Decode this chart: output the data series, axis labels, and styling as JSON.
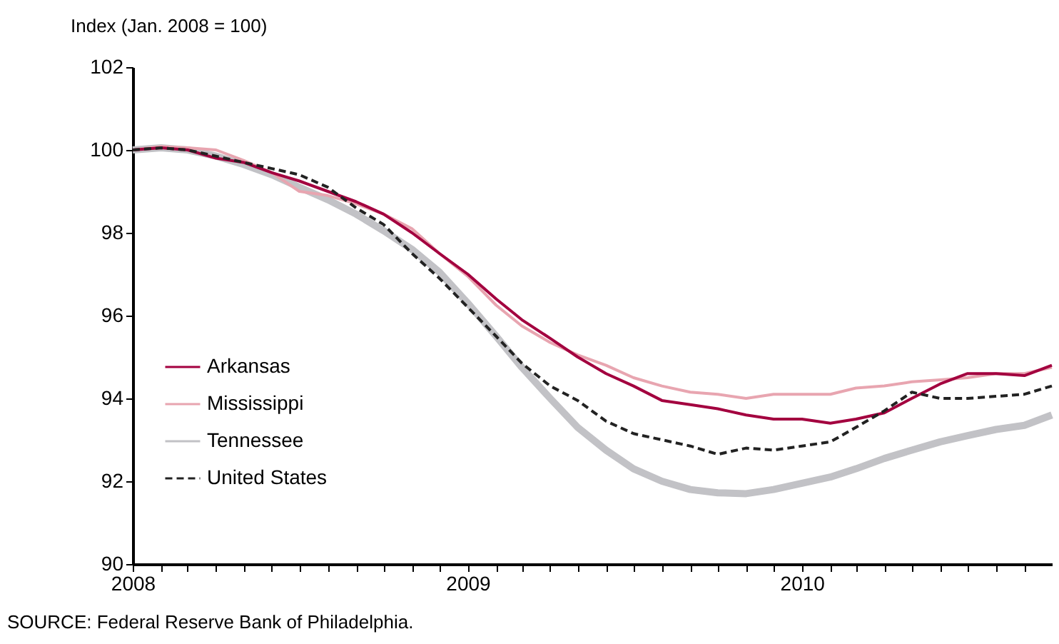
{
  "chart_data": {
    "type": "line",
    "ylabel": "Index (Jan. 2008 = 100)",
    "annotations": [
      "SOURCE: Federal Reserve Bank of Philadelphia."
    ],
    "x": [
      "2008-01",
      "2008-02",
      "2008-03",
      "2008-04",
      "2008-05",
      "2008-06",
      "2008-07",
      "2008-08",
      "2008-09",
      "2008-10",
      "2008-11",
      "2008-12",
      "2009-01",
      "2009-02",
      "2009-03",
      "2009-04",
      "2009-05",
      "2009-06",
      "2009-07",
      "2009-08",
      "2009-09",
      "2009-10",
      "2009-11",
      "2009-12",
      "2010-01",
      "2010-02",
      "2010-03",
      "2010-04",
      "2010-05",
      "2010-06",
      "2010-07",
      "2010-08",
      "2010-09",
      "2010-10"
    ],
    "series": [
      {
        "name": "Arkansas",
        "color": "#a3003f",
        "line_style": "solid",
        "values": [
          100,
          100.05,
          100.0,
          99.8,
          99.7,
          99.45,
          99.25,
          99.0,
          98.75,
          98.45,
          98.0,
          97.5,
          97.0,
          96.4,
          95.9,
          95.45,
          95.0,
          94.6,
          94.3,
          93.95,
          93.85,
          93.75,
          93.6,
          93.5,
          93.5,
          93.4,
          93.5,
          93.65,
          94.0,
          94.35,
          94.6,
          94.6,
          94.55,
          94.8
        ]
      },
      {
        "name": "Mississippi",
        "color": "#e8a5b0",
        "line_style": "solid",
        "values": [
          100,
          100.08,
          100.05,
          100.0,
          99.75,
          99.45,
          99.0,
          98.9,
          98.7,
          98.45,
          98.1,
          97.5,
          96.95,
          96.25,
          95.75,
          95.35,
          95.05,
          94.8,
          94.5,
          94.3,
          94.15,
          94.1,
          94.0,
          94.1,
          94.1,
          94.1,
          94.25,
          94.3,
          94.4,
          94.45,
          94.5,
          94.6,
          94.6,
          94.75
        ]
      },
      {
        "name": "Tennessee",
        "color": "#c2c2c6",
        "line_style": "solid",
        "values": [
          100,
          100.05,
          100.0,
          99.85,
          99.65,
          99.4,
          99.1,
          98.8,
          98.45,
          98.05,
          97.6,
          97.05,
          96.3,
          95.5,
          94.75,
          94.0,
          93.3,
          92.75,
          92.3,
          92.0,
          91.8,
          91.72,
          91.7,
          91.8,
          91.95,
          92.1,
          92.3,
          92.55,
          92.75,
          92.95,
          93.1,
          93.25,
          93.35,
          93.6
        ]
      },
      {
        "name": "United States",
        "color": "#222222",
        "line_style": "dashed",
        "values": [
          100,
          100.05,
          100.0,
          99.85,
          99.7,
          99.55,
          99.4,
          99.1,
          98.6,
          98.2,
          97.5,
          96.9,
          96.2,
          95.5,
          94.85,
          94.3,
          93.95,
          93.45,
          93.15,
          93.0,
          92.85,
          92.65,
          92.8,
          92.75,
          92.85,
          92.95,
          93.3,
          93.7,
          94.15,
          94.0,
          94.0,
          94.05,
          94.1,
          94.3
        ]
      }
    ],
    "xlim": [
      "2008-01",
      "2010-10"
    ],
    "xticks": [
      {
        "value": "2008-01",
        "label": "2008"
      },
      {
        "value": "2008-02",
        "label": null
      },
      {
        "value": "2008-03",
        "label": null
      },
      {
        "value": "2008-04",
        "label": null
      },
      {
        "value": "2008-05",
        "label": null
      },
      {
        "value": "2008-06",
        "label": null
      },
      {
        "value": "2008-07",
        "label": null
      },
      {
        "value": "2008-08",
        "label": null
      },
      {
        "value": "2008-09",
        "label": null
      },
      {
        "value": "2008-10",
        "label": null
      },
      {
        "value": "2008-11",
        "label": null
      },
      {
        "value": "2008-12",
        "label": null
      },
      {
        "value": "2009-01",
        "label": "2009"
      },
      {
        "value": "2009-02",
        "label": null
      },
      {
        "value": "2009-03",
        "label": null
      },
      {
        "value": "2009-04",
        "label": null
      },
      {
        "value": "2009-05",
        "label": null
      },
      {
        "value": "2009-06",
        "label": null
      },
      {
        "value": "2009-07",
        "label": null
      },
      {
        "value": "2009-08",
        "label": null
      },
      {
        "value": "2009-09",
        "label": null
      },
      {
        "value": "2009-10",
        "label": null
      },
      {
        "value": "2009-11",
        "label": null
      },
      {
        "value": "2009-12",
        "label": null
      },
      {
        "value": "2010-01",
        "label": "2010"
      },
      {
        "value": "2010-02",
        "label": null
      },
      {
        "value": "2010-03",
        "label": null
      },
      {
        "value": "2010-04",
        "label": null
      },
      {
        "value": "2010-05",
        "label": null
      },
      {
        "value": "2010-06",
        "label": null
      },
      {
        "value": "2010-07",
        "label": null
      },
      {
        "value": "2010-08",
        "label": null
      },
      {
        "value": "2010-09",
        "label": null
      }
    ],
    "ylim": [
      90,
      102
    ],
    "yticks": [
      90,
      92,
      94,
      96,
      98,
      100,
      102
    ],
    "grid": false,
    "legend": "bottom left",
    "marker": "none"
  }
}
